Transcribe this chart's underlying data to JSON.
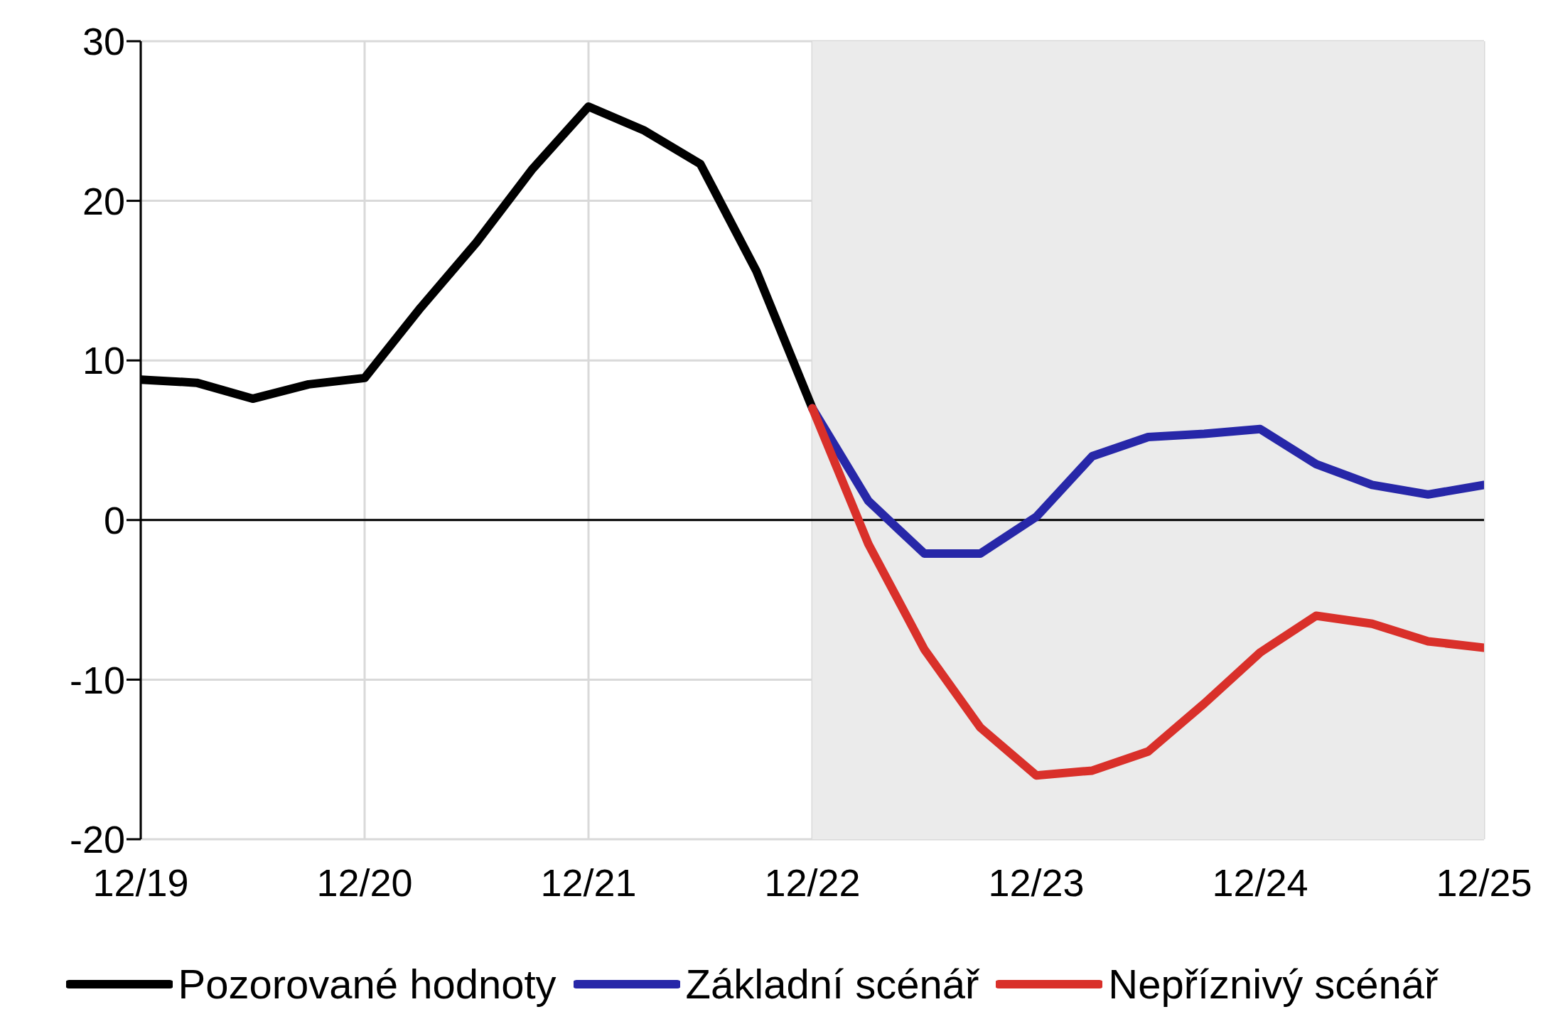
{
  "chart_data": {
    "type": "line",
    "x": [
      "2019-12",
      "2020-03",
      "2020-06",
      "2020-09",
      "2020-12",
      "2021-03",
      "2021-06",
      "2021-09",
      "2021-12",
      "2022-03",
      "2022-06",
      "2022-09",
      "2022-12"
    ],
    "series": [
      {
        "name": "Pozorované hodnoty",
        "color": "#000000",
        "values": [
          8.8,
          8.6,
          7.6,
          8.5,
          8.9,
          13.3,
          17.4,
          22.0,
          25.9,
          24.4,
          22.3,
          15.6,
          7.0
        ]
      },
      {
        "name": "Základní scénář",
        "color": "#2727a8",
        "x": [
          "2022-12",
          "2023-03",
          "2023-06",
          "2023-09",
          "2023-12",
          "2024-03",
          "2024-06",
          "2024-09",
          "2024-12",
          "2025-03",
          "2025-06",
          "2025-09",
          "2025-12"
        ],
        "values": [
          7.0,
          1.2,
          -2.1,
          -2.1,
          0.2,
          4.0,
          5.2,
          5.4,
          5.7,
          3.5,
          2.2,
          1.6,
          2.2
        ]
      },
      {
        "name": "Nepříznivý scénář",
        "color": "#d9302a",
        "x": [
          "2022-12",
          "2023-03",
          "2023-06",
          "2023-09",
          "2023-12",
          "2024-03",
          "2024-06",
          "2024-09",
          "2024-12",
          "2025-03",
          "2025-06",
          "2025-09",
          "2025-12"
        ],
        "values": [
          7.0,
          -1.5,
          -8.1,
          -13.0,
          -16.0,
          -15.7,
          -14.5,
          -11.5,
          -8.3,
          -6.0,
          -6.5,
          -7.6,
          -8.0
        ]
      }
    ],
    "xlim": [
      "2019-12",
      "2025-12"
    ],
    "xticks": [
      {
        "value": "2019-12",
        "label": "12/19"
      },
      {
        "value": "2020-12",
        "label": "12/20"
      },
      {
        "value": "2021-12",
        "label": "12/21"
      },
      {
        "value": "2022-12",
        "label": "12/22"
      },
      {
        "value": "2023-12",
        "label": "12/23"
      },
      {
        "value": "2024-12",
        "label": "12/24"
      },
      {
        "value": "2025-12",
        "label": "12/25"
      }
    ],
    "ylim": [
      -20,
      30
    ],
    "yticks": [
      -20,
      -10,
      0,
      10,
      20,
      30
    ],
    "bands": [
      {
        "axis": "x",
        "from": "2022-12",
        "to": "2025-12",
        "color": "#ebebeb"
      }
    ],
    "ref_lines": [
      {
        "axis": "y",
        "value": 0,
        "color": "#000000"
      }
    ],
    "grid": true,
    "legend": "bottom",
    "marker": "none",
    "line_style": "solid"
  }
}
